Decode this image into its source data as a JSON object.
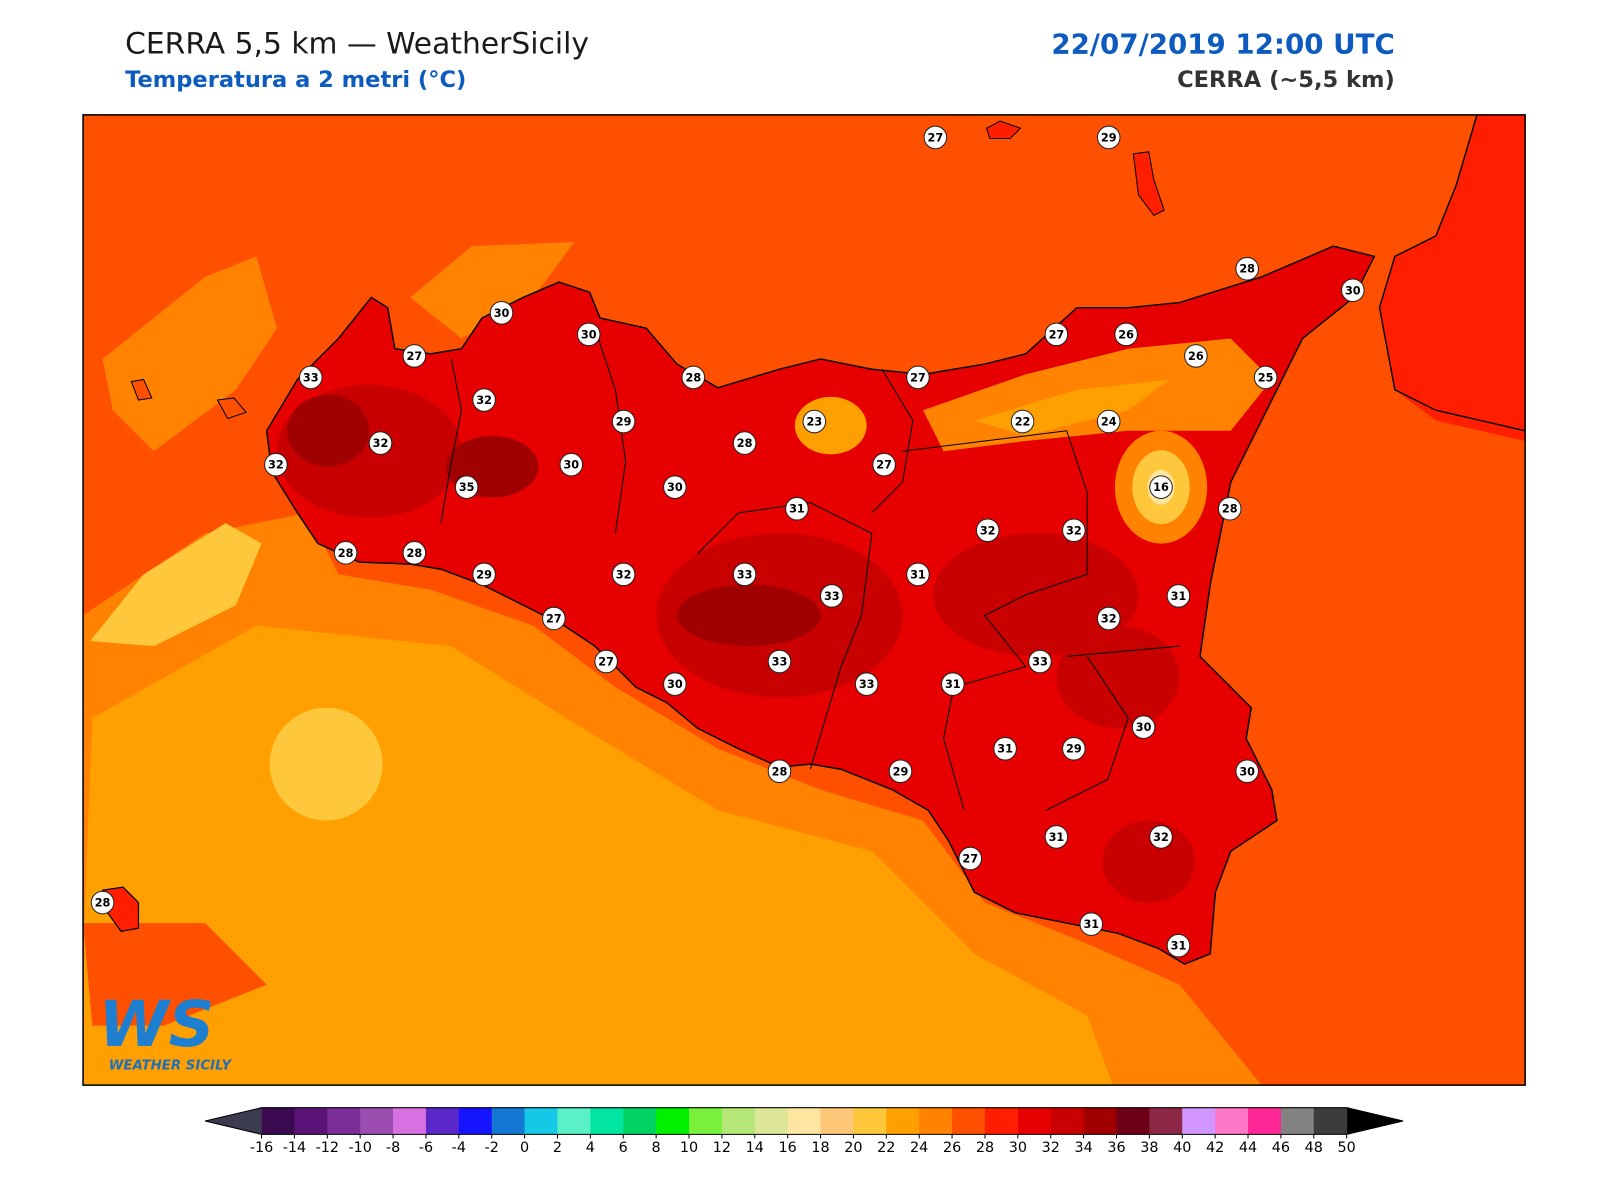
{
  "header": {
    "title": "CERRA 5,5 km — WeatherSicily",
    "subtitle": "Temperatura a 2 metri (°C)",
    "date": "22/07/2019 12:00 UTC",
    "model": "CERRA (~5,5 km)"
  },
  "logo": {
    "mark": "WS",
    "name": "WEATHER SICILY"
  },
  "stations": [
    27,
    29,
    28,
    30,
    30,
    30,
    27,
    26,
    27,
    26,
    33,
    28,
    27,
    25,
    32,
    29,
    23,
    22,
    24,
    32,
    28,
    32,
    30,
    27,
    35,
    30,
    16,
    31,
    28,
    32,
    32,
    28,
    28,
    29,
    32,
    33,
    31,
    33,
    31,
    27,
    32,
    27,
    33,
    33,
    30,
    33,
    31,
    30,
    31,
    29,
    28,
    29,
    30,
    31,
    32,
    27,
    28,
    31,
    31
  ],
  "colorbar": {
    "ticks": [
      -16,
      -14,
      -12,
      -10,
      -8,
      -6,
      -4,
      -2,
      0,
      2,
      4,
      6,
      8,
      10,
      12,
      14,
      16,
      18,
      20,
      22,
      24,
      26,
      28,
      30,
      32,
      34,
      36,
      38,
      40,
      42,
      44,
      46,
      48,
      50
    ],
    "colors": [
      "#3b0a4f",
      "#5a1478",
      "#7a2d96",
      "#9b4db0",
      "#d770e0",
      "#5a28c8",
      "#1414ff",
      "#1478d2",
      "#14c8e6",
      "#5af0c8",
      "#00e6a0",
      "#00d264",
      "#00f000",
      "#78f03c",
      "#b4e678",
      "#dce696",
      "#ffe6a0",
      "#ffc878",
      "#ffc83c",
      "#ffa000",
      "#ff8200",
      "#ff5000",
      "#ff1e00",
      "#e60000",
      "#c80000",
      "#a00000",
      "#6e0018",
      "#8c2846",
      "#d296ff",
      "#ff78c8",
      "#ff2896",
      "#828282",
      "#3c3c3c"
    ],
    "under_color": "#3c3c50",
    "over_color": "#000000"
  }
}
